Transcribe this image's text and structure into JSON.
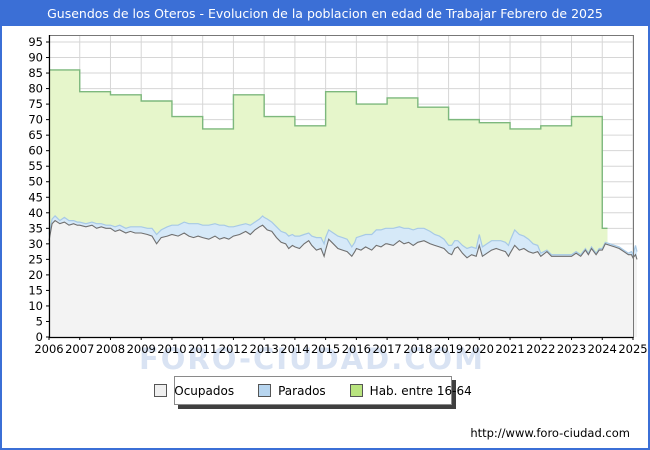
{
  "title": {
    "text": "Gusendos de los Oteros - Evolucion de la poblacion en edad de Trabajar Febrero de 2025"
  },
  "watermark": "FORO-CIUDAD.COM",
  "footer": {
    "url": "http://www.foro-ciudad.com"
  },
  "colors": {
    "frame_blue": "#3b6fd6",
    "hab_fill": "#e6f6cb",
    "hab_stroke": "#7db87d",
    "parados_fill": "#d6e9f8",
    "parados_stroke": "#a7c9e6",
    "ocupados_fill": "#f3f3f3",
    "ocupados_stroke": "#6f6f6f",
    "grid": "#d6d6d6",
    "plot_border": "#777777",
    "axis": "#000000",
    "legend_swatch_ocupados": "#efefef",
    "legend_swatch_parados": "#b7d5ef",
    "legend_swatch_hab": "#b9e47f"
  },
  "legend": {
    "items": [
      {
        "label": "Ocupados"
      },
      {
        "label": "Parados"
      },
      {
        "label": "Hab. entre 16-64"
      }
    ]
  },
  "chart_data": {
    "type": "area",
    "title": "Gusendos de los Oteros - Evolucion de la poblacion en edad de Trabajar Febrero de 2025",
    "xlabel": "",
    "ylabel": "",
    "x_ticks": [
      2006,
      2007,
      2008,
      2009,
      2010,
      2011,
      2012,
      2013,
      2014,
      2015,
      2016,
      2017,
      2018,
      2019,
      2020,
      2021,
      2022,
      2023,
      2024,
      2025
    ],
    "y_ticks": [
      0,
      5,
      10,
      15,
      20,
      25,
      30,
      35,
      40,
      45,
      50,
      55,
      60,
      65,
      70,
      75,
      80,
      85,
      90,
      95
    ],
    "ylim": [
      0,
      97
    ],
    "grid": true,
    "legend_position": "bottom",
    "hab_16_64": {
      "name": "Hab. entre 16-64",
      "style": "step-area-annual",
      "years": [
        2006,
        2007,
        2008,
        2009,
        2010,
        2011,
        2012,
        2013,
        2014,
        2015,
        2016,
        2017,
        2018,
        2019,
        2020,
        2021,
        2022,
        2023,
        2024
      ],
      "values": [
        86,
        79,
        78,
        76,
        71,
        67,
        78,
        71,
        68,
        79,
        75,
        77,
        74,
        70,
        69,
        67,
        68,
        71,
        35
      ],
      "series_end": 2024.17
    },
    "employment": {
      "note_names": [
        "Ocupados",
        "Parados"
      ],
      "columns": [
        "year_fraction",
        "ocupados",
        "parados"
      ],
      "rows": [
        [
          2006.0,
          31,
          2
        ],
        [
          2006.1,
          36.5,
          1.5
        ],
        [
          2006.2,
          37.5,
          1.5
        ],
        [
          2006.35,
          36.5,
          1
        ],
        [
          2006.5,
          37,
          1.5
        ],
        [
          2006.65,
          36,
          1.5
        ],
        [
          2006.8,
          36.5,
          1
        ],
        [
          2006.92,
          36,
          1
        ],
        [
          2007.0,
          36,
          1
        ],
        [
          2007.2,
          35.5,
          1
        ],
        [
          2007.4,
          36,
          1
        ],
        [
          2007.55,
          35,
          1.5
        ],
        [
          2007.7,
          35.5,
          1
        ],
        [
          2007.85,
          35,
          1
        ],
        [
          2008.0,
          35,
          1
        ],
        [
          2008.15,
          34,
          1.5
        ],
        [
          2008.3,
          34.5,
          1.5
        ],
        [
          2008.5,
          33.5,
          1.5
        ],
        [
          2008.65,
          34,
          1.5
        ],
        [
          2008.8,
          33.5,
          2
        ],
        [
          2009.0,
          33.5,
          2
        ],
        [
          2009.2,
          33,
          2
        ],
        [
          2009.35,
          32.5,
          2.5
        ],
        [
          2009.5,
          30,
          3
        ],
        [
          2009.65,
          32,
          2.5
        ],
        [
          2009.85,
          32.5,
          3
        ],
        [
          2010.0,
          33,
          3
        ],
        [
          2010.2,
          32.5,
          3.5
        ],
        [
          2010.4,
          33.5,
          3.5
        ],
        [
          2010.55,
          32.5,
          4
        ],
        [
          2010.7,
          32,
          4.5
        ],
        [
          2010.85,
          32.5,
          4
        ],
        [
          2011.0,
          32,
          4
        ],
        [
          2011.2,
          31.5,
          4.5
        ],
        [
          2011.4,
          32.5,
          4
        ],
        [
          2011.55,
          31.5,
          4.5
        ],
        [
          2011.7,
          32,
          4
        ],
        [
          2011.85,
          31.5,
          4
        ],
        [
          2012.0,
          32.5,
          3
        ],
        [
          2012.2,
          33,
          3
        ],
        [
          2012.4,
          34,
          2.5
        ],
        [
          2012.55,
          33,
          3
        ],
        [
          2012.7,
          34.5,
          2.5
        ],
        [
          2012.85,
          35.5,
          2.5
        ],
        [
          2012.95,
          36,
          3
        ],
        [
          2013.0,
          35.5,
          3
        ],
        [
          2013.1,
          34.5,
          3.5
        ],
        [
          2013.25,
          34,
          3
        ],
        [
          2013.4,
          32,
          3.5
        ],
        [
          2013.55,
          30.5,
          3.5
        ],
        [
          2013.7,
          30,
          3.5
        ],
        [
          2013.8,
          28.5,
          4
        ],
        [
          2013.92,
          29.5,
          3.5
        ],
        [
          2014.0,
          29,
          3.5
        ],
        [
          2014.15,
          28.5,
          4
        ],
        [
          2014.3,
          30,
          3
        ],
        [
          2014.45,
          31,
          2.5
        ],
        [
          2014.55,
          29.5,
          3
        ],
        [
          2014.7,
          28,
          4
        ],
        [
          2014.85,
          28.5,
          3.5
        ],
        [
          2014.95,
          26,
          4
        ],
        [
          2015.0,
          28,
          4
        ],
        [
          2015.1,
          31.5,
          3
        ],
        [
          2015.25,
          30,
          3.5
        ],
        [
          2015.4,
          28.5,
          4
        ],
        [
          2015.55,
          28,
          4
        ],
        [
          2015.7,
          27.5,
          4
        ],
        [
          2015.85,
          26,
          3
        ],
        [
          2015.95,
          27.5,
          3
        ],
        [
          2016.0,
          28.5,
          3.5
        ],
        [
          2016.15,
          28,
          4.5
        ],
        [
          2016.3,
          29,
          4
        ],
        [
          2016.5,
          28,
          5
        ],
        [
          2016.65,
          29.5,
          5
        ],
        [
          2016.8,
          29,
          5.5
        ],
        [
          2016.95,
          30,
          5
        ],
        [
          2017.0,
          30,
          5
        ],
        [
          2017.2,
          29.5,
          5.5
        ],
        [
          2017.4,
          31,
          4.5
        ],
        [
          2017.55,
          30,
          5
        ],
        [
          2017.7,
          30.5,
          4.5
        ],
        [
          2017.85,
          29.5,
          5
        ],
        [
          2018.0,
          30.5,
          4.5
        ],
        [
          2018.2,
          31,
          4
        ],
        [
          2018.4,
          30,
          4
        ],
        [
          2018.55,
          29.5,
          3.5
        ],
        [
          2018.7,
          29,
          3.5
        ],
        [
          2018.85,
          28.5,
          3
        ],
        [
          2019.0,
          27,
          2.5
        ],
        [
          2019.1,
          26.5,
          3
        ],
        [
          2019.2,
          28.5,
          2.5
        ],
        [
          2019.3,
          29,
          2
        ],
        [
          2019.45,
          27,
          2.5
        ],
        [
          2019.6,
          25.5,
          3
        ],
        [
          2019.75,
          26.5,
          2.5
        ],
        [
          2019.9,
          26,
          2.5
        ],
        [
          2020.0,
          29.5,
          3.5
        ],
        [
          2020.1,
          26,
          3
        ],
        [
          2020.25,
          27,
          3
        ],
        [
          2020.4,
          28,
          3
        ],
        [
          2020.55,
          28.5,
          2.5
        ],
        [
          2020.7,
          28,
          3
        ],
        [
          2020.85,
          27.5,
          3
        ],
        [
          2020.95,
          26,
          3.5
        ],
        [
          2021.0,
          27,
          4
        ],
        [
          2021.15,
          29.5,
          5
        ],
        [
          2021.3,
          28,
          5
        ],
        [
          2021.45,
          28.5,
          4
        ],
        [
          2021.6,
          27.5,
          4
        ],
        [
          2021.75,
          27,
          3
        ],
        [
          2021.9,
          27.5,
          2
        ],
        [
          2022.0,
          26,
          1
        ],
        [
          2022.2,
          27.5,
          0.5
        ],
        [
          2022.35,
          26,
          0.5
        ],
        [
          2022.5,
          26,
          0.5
        ],
        [
          2022.7,
          26,
          0.5
        ],
        [
          2022.85,
          26,
          0.5
        ],
        [
          2023.0,
          26,
          0.5
        ],
        [
          2023.15,
          27,
          0.5
        ],
        [
          2023.3,
          26,
          0.5
        ],
        [
          2023.45,
          28,
          0.5
        ],
        [
          2023.55,
          26.5,
          0.5
        ],
        [
          2023.65,
          28.5,
          0.5
        ],
        [
          2023.8,
          26.5,
          0.5
        ],
        [
          2023.9,
          28,
          0.5
        ],
        [
          2024.0,
          28,
          0.5
        ],
        [
          2024.1,
          30,
          0.5
        ],
        [
          2024.25,
          29.5,
          0.5
        ],
        [
          2024.4,
          29,
          0.5
        ],
        [
          2024.55,
          28.5,
          0.5
        ],
        [
          2024.7,
          27.5,
          0.5
        ],
        [
          2024.85,
          26.5,
          0.5
        ],
        [
          2024.95,
          26.5,
          1
        ],
        [
          2025.0,
          25.5,
          1
        ],
        [
          2025.08,
          26.5,
          3
        ],
        [
          2025.13,
          25,
          2.5
        ]
      ]
    }
  }
}
